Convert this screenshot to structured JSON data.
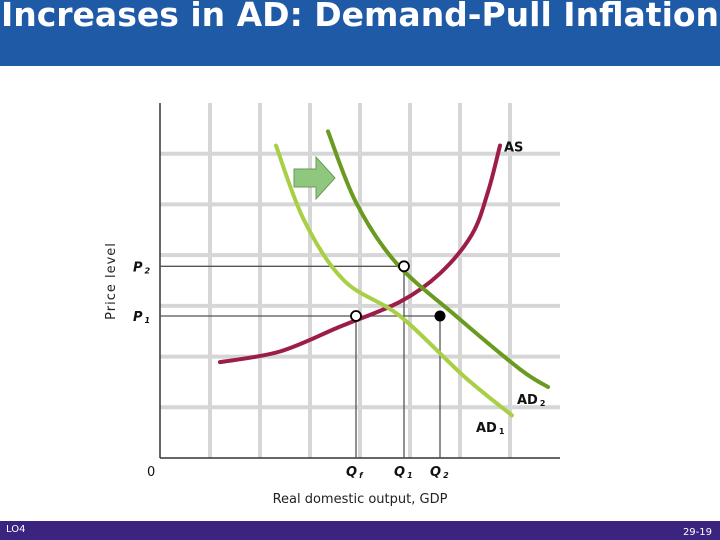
{
  "slide": {
    "title": "Increases in AD: Demand-Pull Inflation",
    "footer_left": "LO4",
    "footer_right": "29-19"
  },
  "colors": {
    "title_bar": "#1f5aa6",
    "footer_bar": "#3b2380",
    "as_curve": "#9c1c4a",
    "ad1_curve": "#a8cf45",
    "ad2_curve": "#6a9a1f",
    "shift_arrow": "#8fc77e"
  },
  "chart_data": {
    "type": "line",
    "title": "",
    "xlabel": "Real domestic output, GDP",
    "ylabel": "Price level",
    "origin_label": "0",
    "xlim": [
      0,
      100
    ],
    "ylim": [
      0,
      100
    ],
    "grid": true,
    "series": [
      {
        "name": "AS",
        "x": [
          15,
          30,
          45,
          60,
          70,
          78,
          82,
          85
        ],
        "y": [
          27,
          30,
          37,
          44,
          52,
          63,
          75,
          88
        ]
      },
      {
        "name": "AD1",
        "x": [
          29,
          36,
          46,
          60,
          76,
          88
        ],
        "y": [
          88,
          67,
          50,
          40,
          23,
          12
        ]
      },
      {
        "name": "AD2",
        "x": [
          42,
          49,
          59,
          74,
          90,
          97
        ],
        "y": [
          92,
          72,
          55,
          40,
          25,
          20
        ]
      }
    ],
    "equilibria": [
      {
        "x": 49,
        "y": 40,
        "style": "open"
      },
      {
        "x": 61,
        "y": 54,
        "style": "open"
      },
      {
        "x": 70,
        "y": 40,
        "style": "filled"
      }
    ],
    "price_levels": [
      {
        "label": "P",
        "sub": "1",
        "y": 40
      },
      {
        "label": "P",
        "sub": "2",
        "y": 54
      }
    ],
    "quantities": [
      {
        "label": "Q",
        "sub": "f",
        "x": 49
      },
      {
        "label": "Q",
        "sub": "1",
        "x": 61
      },
      {
        "label": "Q",
        "sub": "2",
        "x": 70
      }
    ],
    "curve_labels": [
      {
        "label": "AS",
        "sub": "",
        "x": 85,
        "y": 88
      },
      {
        "label": "AD",
        "sub": "2",
        "x": 90,
        "y": 20
      },
      {
        "label": "AD",
        "sub": "1",
        "x": 80,
        "y": 11
      }
    ]
  }
}
